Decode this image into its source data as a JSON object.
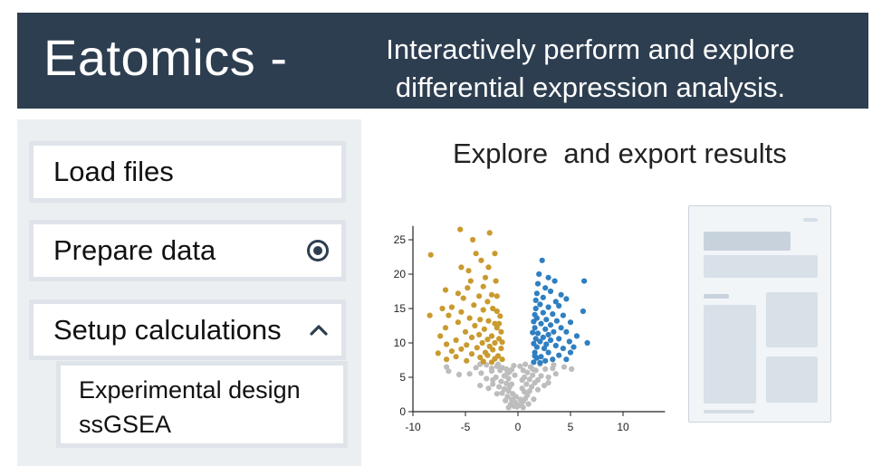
{
  "header": {
    "brand": "Eatomics  -",
    "tagline": "Interactively perform and explore differential expression analysis.",
    "background_color": "#2d3e50"
  },
  "sidebar": {
    "items": [
      {
        "label": "Load files",
        "icon": null
      },
      {
        "label": "Prepare data",
        "icon": "radio-selected-icon"
      },
      {
        "label": "Setup calculations",
        "icon": "chevron-up-icon"
      }
    ],
    "subitems": [
      "Experimental design",
      "ssGSEA"
    ]
  },
  "main": {
    "title": "Explore  and export results"
  },
  "chart_data": {
    "type": "scatter",
    "title": "",
    "xlabel": "",
    "ylabel": "",
    "xlim": [
      -10,
      14
    ],
    "ylim": [
      0,
      27
    ],
    "xticks": [
      -10,
      -5,
      0,
      5,
      10
    ],
    "yticks": [
      0,
      5,
      10,
      15,
      20,
      25
    ],
    "colors": {
      "down": "#c99a2e",
      "up": "#2f7fc1",
      "ns": "#bdbdbd"
    },
    "series": [
      {
        "key": "down",
        "points": [
          [
            -5.5,
            26.5
          ],
          [
            -2.7,
            26
          ],
          [
            -4.3,
            25
          ],
          [
            -4,
            23
          ],
          [
            -8.3,
            22.8
          ],
          [
            -2.2,
            23
          ],
          [
            -3.5,
            22
          ],
          [
            -5.4,
            21
          ],
          [
            -4.7,
            20.5
          ],
          [
            -2.8,
            21
          ],
          [
            -4.5,
            19
          ],
          [
            -3.1,
            19.5
          ],
          [
            -6.9,
            17.7
          ],
          [
            -4.8,
            18
          ],
          [
            -3.3,
            18.2
          ],
          [
            -5.7,
            17.2
          ],
          [
            -2.5,
            17
          ],
          [
            -5.2,
            16.5
          ],
          [
            -3.7,
            16.8
          ],
          [
            -2.9,
            16
          ],
          [
            -4.2,
            15.5
          ],
          [
            -6.3,
            15.2
          ],
          [
            -7.2,
            15
          ],
          [
            -5.4,
            14.5
          ],
          [
            -3.3,
            14.8
          ],
          [
            -2.4,
            15
          ],
          [
            -2.0,
            14.6
          ],
          [
            -8.4,
            14
          ],
          [
            -6.6,
            14
          ],
          [
            -4.6,
            13.6
          ],
          [
            -3.6,
            13.4
          ],
          [
            -2.8,
            13.2
          ],
          [
            -5.7,
            13
          ],
          [
            -2.2,
            12.8
          ],
          [
            -4.1,
            12.5
          ],
          [
            -6.9,
            12.2
          ],
          [
            -3.2,
            12
          ],
          [
            -2.0,
            12.2
          ],
          [
            -5.0,
            11.6
          ],
          [
            -3.7,
            11.2
          ],
          [
            -2.5,
            11
          ],
          [
            -7.4,
            11
          ],
          [
            -4.4,
            10.8
          ],
          [
            -2.9,
            10.5
          ],
          [
            -5.9,
            10.4
          ],
          [
            -3.4,
            10
          ],
          [
            -2.2,
            10
          ],
          [
            -6.8,
            9.8
          ],
          [
            -4.9,
            9.7
          ],
          [
            -2.7,
            9.5
          ],
          [
            -3.9,
            9.3
          ],
          [
            -5.4,
            9.1
          ],
          [
            -2.4,
            9
          ],
          [
            -6.3,
            8.8
          ],
          [
            -3.1,
            8.6
          ],
          [
            -7.6,
            8.5
          ],
          [
            -4.4,
            8.4
          ],
          [
            -2.9,
            8.2
          ],
          [
            -5.9,
            8
          ],
          [
            -3.6,
            7.9
          ],
          [
            -2.2,
            7.7
          ],
          [
            -6.8,
            7.6
          ],
          [
            -4.9,
            7.4
          ],
          [
            -3.3,
            7.3
          ],
          [
            -2.5,
            7.2
          ],
          [
            -1.8,
            10.6
          ],
          [
            -1.6,
            9.2
          ],
          [
            -1.9,
            8.1
          ],
          [
            -1.5,
            7.6
          ],
          [
            -1.8,
            12.8
          ],
          [
            -1.6,
            11.6
          ],
          [
            -2.0,
            16.8
          ],
          [
            -1.7,
            13.9
          ],
          [
            -1.5,
            10.1
          ],
          [
            -2.1,
            19
          ]
        ]
      },
      {
        "key": "up",
        "points": [
          [
            2.3,
            22
          ],
          [
            2.0,
            20
          ],
          [
            2.9,
            19.5
          ],
          [
            3.5,
            19
          ],
          [
            6.3,
            19
          ],
          [
            2.6,
            18
          ],
          [
            3.1,
            17.5
          ],
          [
            4.1,
            17
          ],
          [
            1.8,
            17.2
          ],
          [
            2.4,
            16.6
          ],
          [
            3.6,
            16
          ],
          [
            4.6,
            16.4
          ],
          [
            2.1,
            15.6
          ],
          [
            2.9,
            15.2
          ],
          [
            3.9,
            15.4
          ],
          [
            1.7,
            15
          ],
          [
            6.2,
            14.6
          ],
          [
            2.4,
            14.4
          ],
          [
            3.3,
            14.2
          ],
          [
            4.3,
            14
          ],
          [
            1.8,
            13.6
          ],
          [
            2.7,
            13.4
          ],
          [
            3.7,
            13.2
          ],
          [
            5.0,
            13
          ],
          [
            2.2,
            12.8
          ],
          [
            3.1,
            12.6
          ],
          [
            4.1,
            12.2
          ],
          [
            1.6,
            12.2
          ],
          [
            2.6,
            12
          ],
          [
            3.4,
            11.6
          ],
          [
            4.6,
            11.6
          ],
          [
            1.9,
            11.4
          ],
          [
            2.9,
            11.2
          ],
          [
            5.6,
            11
          ],
          [
            2.4,
            10.8
          ],
          [
            3.9,
            10.6
          ],
          [
            1.7,
            10.6
          ],
          [
            3.1,
            10.4
          ],
          [
            6.6,
            10
          ],
          [
            2.1,
            10.2
          ],
          [
            4.9,
            10.2
          ],
          [
            2.7,
            9.8
          ],
          [
            3.6,
            9.6
          ],
          [
            5.3,
            9.4
          ],
          [
            1.8,
            9.4
          ],
          [
            2.5,
            9.2
          ],
          [
            4.3,
            9.2
          ],
          [
            1.6,
            8.6
          ],
          [
            2.9,
            8.6
          ],
          [
            3.9,
            8.2
          ],
          [
            2.2,
            8
          ],
          [
            5.0,
            8.6
          ],
          [
            1.8,
            7.8
          ],
          [
            3.3,
            7.6
          ],
          [
            2.6,
            7.4
          ],
          [
            4.6,
            7.6
          ],
          [
            1.5,
            7.2
          ],
          [
            2.1,
            7.1
          ],
          [
            1.5,
            9.9
          ],
          [
            1.4,
            11.5
          ],
          [
            1.5,
            13.1
          ],
          [
            1.6,
            14.1
          ],
          [
            1.7,
            16.2
          ],
          [
            1.9,
            18.6
          ],
          [
            1.6,
            8.1
          ]
        ]
      },
      {
        "key": "ns",
        "points": [
          [
            -6.8,
            6.5
          ],
          [
            -6.6,
            5.9
          ],
          [
            -4,
            6.4
          ],
          [
            -3,
            6.8
          ],
          [
            -2,
            6.6
          ],
          [
            -1.5,
            6.4
          ],
          [
            -1.1,
            6.2
          ],
          [
            -0.8,
            5.8
          ],
          [
            -1.7,
            6
          ],
          [
            -2.5,
            5.9
          ],
          [
            -3.5,
            5.6
          ],
          [
            -5.6,
            5.4
          ],
          [
            -4.6,
            5.5
          ],
          [
            -1.3,
            5.2
          ],
          [
            -0.9,
            4.8
          ],
          [
            -2.1,
            5
          ],
          [
            -3,
            4.8
          ],
          [
            -1.6,
            4.4
          ],
          [
            -1.1,
            4.1
          ],
          [
            -0.6,
            4
          ],
          [
            -2.4,
            4
          ],
          [
            -1.8,
            3.6
          ],
          [
            -1.3,
            3.3
          ],
          [
            -0.9,
            3
          ],
          [
            -0.5,
            2.6
          ],
          [
            -1.5,
            2.7
          ],
          [
            -1,
            2.2
          ],
          [
            -0.6,
            1.8
          ],
          [
            -0.3,
            1.4
          ],
          [
            -0.7,
            1.1
          ],
          [
            -0.4,
            0.8
          ],
          [
            -0.1,
            0.7
          ],
          [
            0.1,
            0.9
          ],
          [
            -0.2,
            1.2
          ],
          [
            0.3,
            1.1
          ],
          [
            0.5,
            1.5
          ],
          [
            0.7,
            1.9
          ],
          [
            0.2,
            1.8
          ],
          [
            -0.2,
            2.2
          ],
          [
            0.9,
            2.4
          ],
          [
            0.6,
            2.9
          ],
          [
            1.1,
            3
          ],
          [
            0.4,
            3.4
          ],
          [
            1.3,
            3.6
          ],
          [
            0.8,
            4
          ],
          [
            1.6,
            4.2
          ],
          [
            1.1,
            4.7
          ],
          [
            1.9,
            4.6
          ],
          [
            0.6,
            5
          ],
          [
            1.4,
            5.3
          ],
          [
            2.2,
            5.2
          ],
          [
            2.9,
            5
          ],
          [
            3.6,
            5.5
          ],
          [
            0.9,
            5.7
          ],
          [
            1.7,
            6
          ],
          [
            2.6,
            6.2
          ],
          [
            3.3,
            6.3
          ],
          [
            4.4,
            6.5
          ],
          [
            5.1,
            6.2
          ],
          [
            1.2,
            6.5
          ],
          [
            0.2,
            6.6
          ],
          [
            -0.4,
            6.7
          ],
          [
            0.7,
            6.9
          ],
          [
            2.1,
            6.9
          ],
          [
            1.4,
            6.2
          ],
          [
            -0.8,
            3.6
          ],
          [
            -2.4,
            4.6
          ],
          [
            -1,
            5.6
          ],
          [
            0.4,
            4.6
          ],
          [
            -0.3,
            5.3
          ],
          [
            -3.6,
            3.8
          ],
          [
            -2.8,
            3.4
          ],
          [
            -2,
            2.6
          ],
          [
            1.9,
            3.2
          ],
          [
            2.5,
            3.8
          ],
          [
            0.5,
            6
          ],
          [
            -0.6,
            6.1
          ],
          [
            -1.9,
            6.9
          ],
          [
            1.5,
            1.8
          ],
          [
            1,
            1.1
          ],
          [
            -1.2,
            1.6
          ],
          [
            -0.9,
            0.6
          ],
          [
            0.5,
            0.6
          ],
          [
            2.9,
            4.2
          ],
          [
            -2.5,
            6.3
          ],
          [
            3.4,
            6.8
          ],
          [
            -3.6,
            6.9
          ]
        ]
      }
    ]
  }
}
